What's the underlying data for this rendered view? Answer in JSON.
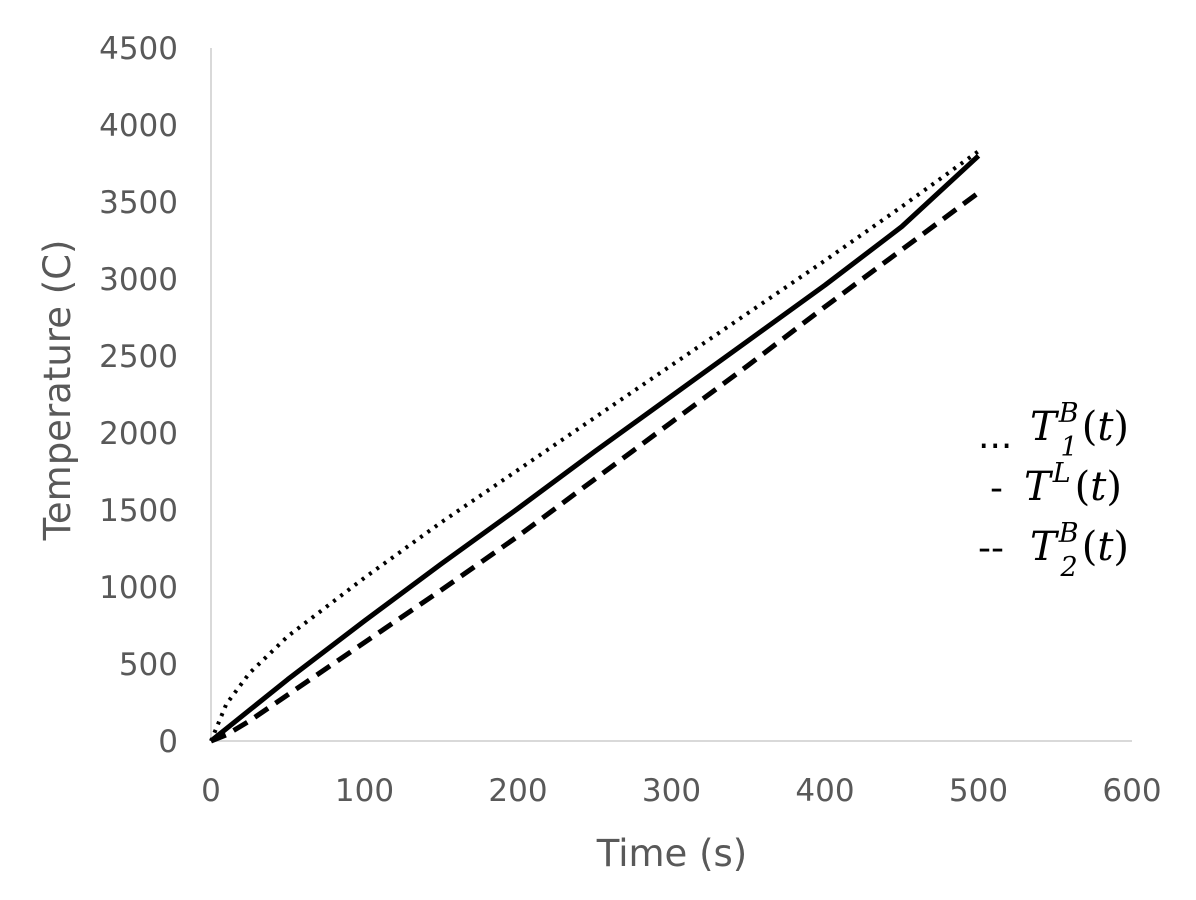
{
  "chart_data": {
    "type": "line",
    "title": "",
    "xlabel": "Time (s)",
    "ylabel": "Temperature (C)",
    "xlim": [
      0,
      600
    ],
    "ylim": [
      0,
      4500
    ],
    "xticks": [
      0,
      100,
      200,
      300,
      400,
      500,
      600
    ],
    "yticks": [
      0,
      500,
      1000,
      1500,
      2000,
      2500,
      3000,
      3500,
      4000,
      4500
    ],
    "grid": false,
    "legend_position": "right",
    "series": [
      {
        "name": "T_1^B(t)",
        "legend_symbol": "...",
        "style": "dotted",
        "color": "#000000",
        "x": [
          0,
          10,
          25,
          50,
          100,
          150,
          200,
          250,
          300,
          350,
          400,
          450,
          500
        ],
        "y": [
          0,
          240,
          440,
          680,
          1060,
          1420,
          1760,
          2100,
          2440,
          2780,
          3120,
          3470,
          3830
        ]
      },
      {
        "name": "T^L(t)",
        "legend_symbol": "-",
        "style": "solid",
        "color": "#000000",
        "x": [
          0,
          10,
          25,
          50,
          100,
          150,
          200,
          250,
          300,
          350,
          400,
          450,
          500
        ],
        "y": [
          0,
          80,
          200,
          400,
          780,
          1150,
          1510,
          1880,
          2240,
          2600,
          2960,
          3340,
          3800
        ]
      },
      {
        "name": "T_2^B(t)",
        "legend_symbol": "--",
        "style": "dashed",
        "color": "#000000",
        "x": [
          0,
          10,
          25,
          50,
          100,
          150,
          200,
          250,
          300,
          350,
          400,
          450,
          500
        ],
        "y": [
          0,
          40,
          130,
          300,
          640,
          980,
          1330,
          1700,
          2070,
          2440,
          2820,
          3190,
          3560
        ]
      }
    ]
  }
}
